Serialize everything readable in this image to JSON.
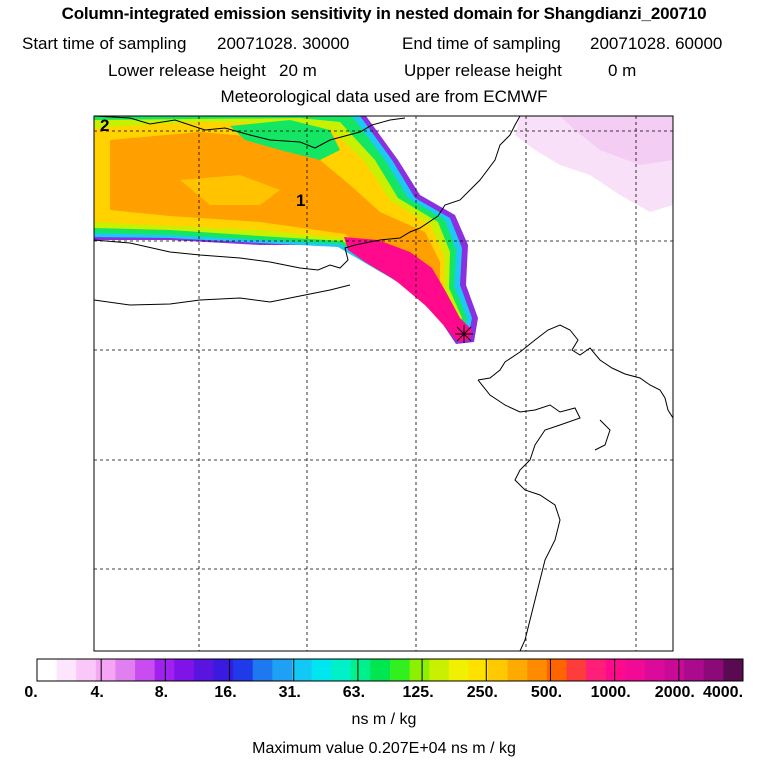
{
  "header": {
    "title": "Column-integrated emission sensitivity in nested domain for Shangdianzi_200710",
    "start_label": "Start time of sampling",
    "start_value": "20071028. 30000",
    "end_label": "End time of sampling",
    "end_value": "20071028. 60000",
    "lower_label": "Lower release height",
    "lower_value": "20 m",
    "upper_label": "Upper release height",
    "upper_value": "0 m",
    "met_note": "Meteorological data used are from ECMWF"
  },
  "map": {
    "markers": [
      "2",
      "1"
    ],
    "release_site": "Shangdianzi"
  },
  "chart_data": {
    "type": "heatmap",
    "title": "Column-integrated emission sensitivity in nested domain for Shangdianzi_200710",
    "units": "ns m / kg",
    "colorbar_ticks": [
      "0.",
      "4.",
      "8.",
      "16.",
      "31.",
      "63.",
      "125.",
      "250.",
      "500.",
      "1000.",
      "2000.",
      "4000."
    ],
    "colorbar_colors": [
      "#ffffff",
      "#fde6fd",
      "#f9c8f9",
      "#f4a6f4",
      "#e080f0",
      "#c84cf0",
      "#a020f0",
      "#8014e8",
      "#5a14e0",
      "#3a1ae0",
      "#1f3ae8",
      "#1e78f0",
      "#1ea0f5",
      "#14c8f5",
      "#00e6f0",
      "#00f0c8",
      "#00f08c",
      "#00e650",
      "#32f020",
      "#8cf000",
      "#c8f000",
      "#f0f000",
      "#ffe100",
      "#ffc800",
      "#ffaa00",
      "#ff8c00",
      "#ff6400",
      "#ff3c3c",
      "#ff1e78",
      "#ff0a8c",
      "#f00a96",
      "#dc0a9b",
      "#c80a96",
      "#aa0a8c",
      "#8c0a78",
      "#5a0a50"
    ],
    "maximum_value": "0.207E+04",
    "maximum_label": "Maximum value",
    "plume_levels": [
      {
        "level": "125-250",
        "color": "#c8f000"
      },
      {
        "level": "250-500",
        "color": "#ffd200"
      },
      {
        "level": "500-1000",
        "color": "#ff8c00"
      },
      {
        "level": "1000-2000",
        "color": "#ff0a8c"
      }
    ]
  }
}
